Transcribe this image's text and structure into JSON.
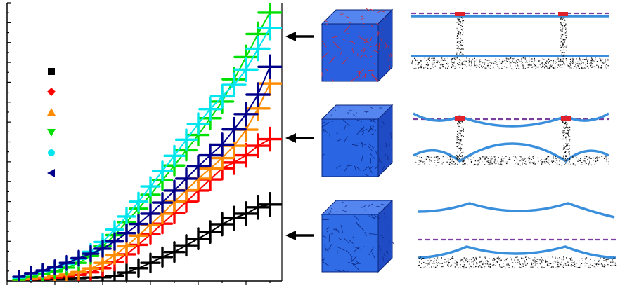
{
  "chart_data": {
    "type": "line",
    "title": "",
    "xlabel": "",
    "ylabel": "",
    "x_tick_count": 12,
    "y_tick_count": 29,
    "xlim": [
      0,
      11.5
    ],
    "ylim": [
      0,
      100
    ],
    "x": [
      0.5,
      1.0,
      1.5,
      2.0,
      2.5,
      3.0,
      3.5,
      4.0,
      4.5,
      5.0,
      5.5,
      6.0,
      6.5,
      7.0,
      7.5,
      8.0,
      8.5,
      9.0,
      9.5,
      10.0,
      10.5,
      11.0
    ],
    "legend_labels_visible": false,
    "series": [
      {
        "name": "series-1",
        "marker": "square",
        "color": "#000000",
        "values": [
          0.2,
          0.4,
          0.6,
          0.8,
          0.9,
          1.0,
          1.2,
          1.3,
          1.8,
          3.0,
          4.6,
          6.5,
          8.6,
          10.4,
          12.8,
          15.2,
          17.6,
          20.4,
          22.6,
          24.2,
          26.5,
          27.5
        ]
      },
      {
        "name": "series-2",
        "marker": "diamond",
        "color": "#ff0000",
        "values": [
          0.3,
          0.6,
          0.9,
          1.2,
          1.6,
          2.2,
          3.1,
          4.6,
          6.8,
          9.6,
          13.0,
          16.8,
          20.6,
          24.5,
          28.5,
          32.5,
          36.5,
          40.5,
          42.6,
          45.2,
          48.6,
          51.0
        ]
      },
      {
        "name": "series-3",
        "marker": "triangle-up",
        "color": "#ff8c00",
        "values": [
          0.3,
          0.8,
          1.2,
          1.7,
          2.3,
          3.2,
          4.5,
          6.5,
          9.2,
          12.5,
          16.3,
          20.3,
          24.2,
          28.5,
          32.6,
          36.8,
          40.4,
          44.2,
          48.6,
          54.4,
          62.0,
          71.0
        ]
      },
      {
        "name": "series-4",
        "marker": "triangle-down",
        "color": "#00e000",
        "values": [
          0.5,
          1.5,
          2.5,
          3.5,
          4.8,
          6.5,
          9.0,
          12.5,
          16.5,
          21.2,
          26.0,
          31.0,
          36.2,
          41.5,
          47.0,
          52.5,
          58.5,
          64.5,
          72.5,
          80.5,
          88.8,
          96.5
        ]
      },
      {
        "name": "series-5",
        "marker": "circle",
        "color": "#00e5ee",
        "values": [
          1.2,
          2.5,
          3.6,
          4.8,
          6.2,
          8.0,
          10.5,
          14.0,
          18.5,
          23.2,
          28.5,
          34.0,
          39.5,
          45.0,
          50.8,
          56.5,
          61.8,
          66.4,
          70.5,
          76.0,
          83.5,
          91.0
        ]
      },
      {
        "name": "series-6",
        "marker": "triangle-left",
        "color": "#00008b",
        "values": [
          1.5,
          2.8,
          3.8,
          5.0,
          6.5,
          8.2,
          9.8,
          11.6,
          14.2,
          17.2,
          20.5,
          24.2,
          28.2,
          32.5,
          36.8,
          41.2,
          45.2,
          49.0,
          54.5,
          60.0,
          67.0,
          77.0
        ]
      }
    ]
  },
  "annotations": {
    "arrows": [
      {
        "name": "arrow-top",
        "direction": "left"
      },
      {
        "name": "arrow-middle",
        "direction": "left"
      },
      {
        "name": "arrow-bottom",
        "direction": "left"
      }
    ]
  },
  "insets": {
    "cubes": [
      {
        "name": "cube-top",
        "face_color": "#2a5fe0",
        "grain_color": "#d8232a"
      },
      {
        "name": "cube-middle",
        "face_color": "#2a66e3",
        "grain_color": "#0e2a86"
      },
      {
        "name": "cube-bottom",
        "face_color": "#2f6ce6",
        "grain_color": "#0e2a86"
      }
    ],
    "profiles": [
      {
        "name": "profile-top",
        "line_color": "#3a8fdc",
        "dashed_color": "#7a3ea0",
        "contact_color": "#e0202a"
      },
      {
        "name": "profile-middle",
        "line_color": "#3a8fdc",
        "dashed_color": "#7a3ea0",
        "contact_color": "#e0202a"
      },
      {
        "name": "profile-bottom",
        "line_color": "#3a8fdc",
        "dashed_color": "#7a3ea0",
        "contact_color": "#e0202a"
      }
    ]
  }
}
